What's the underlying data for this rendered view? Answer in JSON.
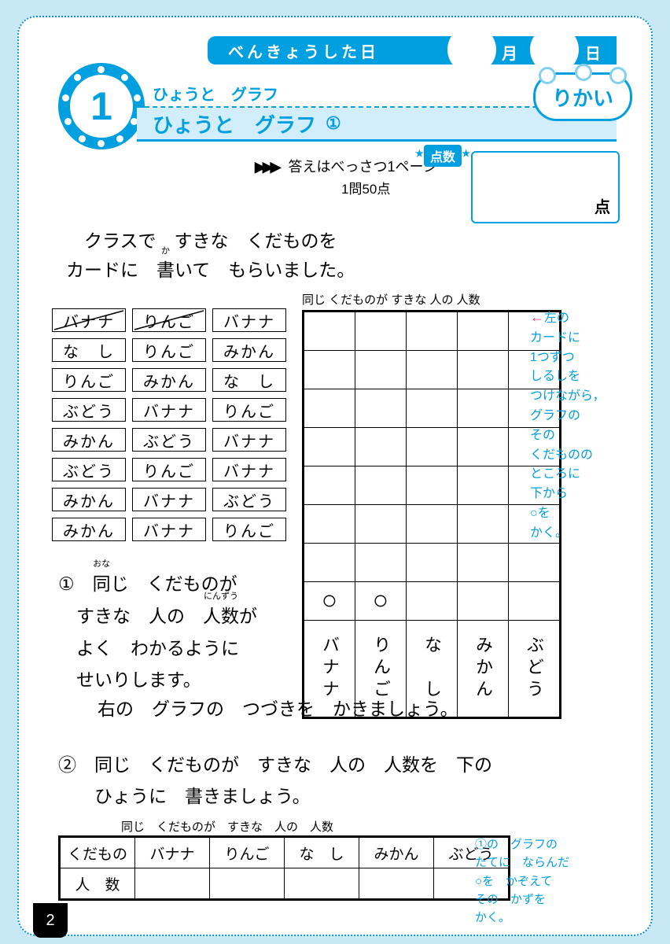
{
  "colors": {
    "accent": "#009fdf",
    "bg": "#c7e9f5"
  },
  "header": {
    "date_label": "べんきょうした日",
    "month_suffix": "月",
    "day_suffix": "日"
  },
  "chapter": {
    "number": "1",
    "supertitle": "ひょうと　グラフ",
    "title": "ひょうと　グラフ",
    "circled": "①",
    "cloud": "りかい"
  },
  "score": {
    "answer_ref": "答えはべっさつ1ページ",
    "per_question": "1問50点",
    "label": "点数",
    "unit": "点"
  },
  "intro": {
    "l1": "クラスで　すきな　くだものを",
    "l2a": "カードに　",
    "l2k": "書",
    "l2k_ruby": "か",
    "l2b": "いて　もらいました。"
  },
  "cards": {
    "rows": [
      [
        {
          "t": "バナナ",
          "crossed": true
        },
        {
          "t": "りんご",
          "crossed": true
        },
        {
          "t": "バナナ"
        }
      ],
      [
        {
          "t": "な　し"
        },
        {
          "t": "りんご"
        },
        {
          "t": "みかん"
        }
      ],
      [
        {
          "t": "りんご"
        },
        {
          "t": "みかん"
        },
        {
          "t": "な　し"
        }
      ],
      [
        {
          "t": "ぶどう"
        },
        {
          "t": "バナナ"
        },
        {
          "t": "りんご"
        }
      ],
      [
        {
          "t": "みかん"
        },
        {
          "t": "ぶどう"
        },
        {
          "t": "バナナ"
        }
      ],
      [
        {
          "t": "ぶどう"
        },
        {
          "t": "りんご"
        },
        {
          "t": "バナナ"
        }
      ],
      [
        {
          "t": "みかん"
        },
        {
          "t": "バナナ"
        },
        {
          "t": "ぶどう"
        }
      ],
      [
        {
          "t": "みかん"
        },
        {
          "t": "バナナ"
        },
        {
          "t": "りんご"
        }
      ]
    ]
  },
  "graph": {
    "title": "同じ くだものが すきな 人の 人数",
    "columns": [
      "バナナ",
      "りんご",
      "な　し",
      "みかん",
      "ぶどう"
    ],
    "rows": 8,
    "marks": {
      "row": 7,
      "cols": [
        0,
        1
      ]
    },
    "mark_glyph": "○"
  },
  "hint_right": {
    "arrow": "←",
    "lines": [
      "左の",
      "カードに",
      "1つずつ",
      "しるしを",
      "つけながら，",
      "グラフの",
      "その",
      "くだものの",
      "ところに",
      "下から",
      "○を",
      "かく。"
    ]
  },
  "q1": {
    "num": "①",
    "l1a": "同",
    "l1a_ruby": "おな",
    "l1b": "じ　くだものが",
    "l2a": "すきな　人の　",
    "l2k": "人数",
    "l2k_ruby": "にんずう",
    "l2b": "が",
    "l3": "よく　わかるように",
    "l4": "せいりします。",
    "l5": "右の　グラフの　つづきを　かきましょう。"
  },
  "q2": {
    "num": "②",
    "l1": "同じ　くだものが　すきな　人の　人数を　下の",
    "l2": "ひょうに　書きましょう。"
  },
  "table": {
    "title": "同じ　くだものが　すきな　人の　人数",
    "row_labels": [
      "くだもの",
      "人　数"
    ],
    "cols": [
      "バナナ",
      "りんご",
      "な　し",
      "みかん",
      "ぶどう"
    ]
  },
  "hint_bottom": {
    "lines": [
      "①の　グラフの",
      "たてに　ならんだ",
      "○を　かぞえて",
      "その　かずを",
      "かく。"
    ]
  },
  "page_number": "2"
}
